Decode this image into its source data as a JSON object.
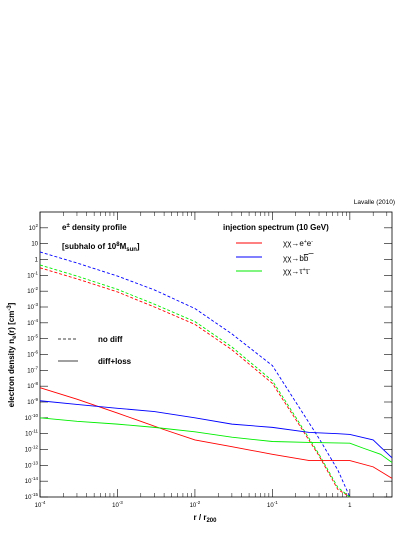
{
  "chart_data": {
    "type": "line",
    "credit": "Lavalle (2010)",
    "xlabel": "r / r",
    "xlabel_sub": "200",
    "ylabel_main": "electron density n",
    "ylabel_tail": "(r)  [cm",
    "xscale": "log",
    "yscale": "log",
    "xlim": [
      0.0001,
      3.5
    ],
    "ylim": [
      1e-15,
      1000
    ],
    "grid": false,
    "x_ticks": [
      {
        "value": 0.0001,
        "label": "10",
        "exp": "-4"
      },
      {
        "value": 0.001,
        "label": "10",
        "exp": "-3"
      },
      {
        "value": 0.01,
        "label": "10",
        "exp": "-2"
      },
      {
        "value": 0.1,
        "label": "10",
        "exp": "-1"
      },
      {
        "value": 1,
        "label": "1",
        "exp": ""
      }
    ],
    "y_ticks": [
      {
        "value": 1e-15,
        "label": "10",
        "exp": "-15"
      },
      {
        "value": 1e-14,
        "label": "10",
        "exp": "-14"
      },
      {
        "value": 1e-13,
        "label": "10",
        "exp": "-13"
      },
      {
        "value": 1e-12,
        "label": "10",
        "exp": "-12"
      },
      {
        "value": 1e-11,
        "label": "10",
        "exp": "-11"
      },
      {
        "value": 1e-10,
        "label": "10",
        "exp": "-10"
      },
      {
        "value": 1e-09,
        "label": "10",
        "exp": "-9"
      },
      {
        "value": 1e-08,
        "label": "10",
        "exp": "-8"
      },
      {
        "value": 1e-07,
        "label": "10",
        "exp": "-7"
      },
      {
        "value": 1e-06,
        "label": "10",
        "exp": "-6"
      },
      {
        "value": 1e-05,
        "label": "10",
        "exp": "-5"
      },
      {
        "value": 0.0001,
        "label": "10",
        "exp": "-4"
      },
      {
        "value": 0.001,
        "label": "10",
        "exp": "-3"
      },
      {
        "value": 0.01,
        "label": "10",
        "exp": "-2"
      },
      {
        "value": 0.1,
        "label": "10",
        "exp": "-1"
      },
      {
        "value": 1,
        "label": "1",
        "exp": ""
      },
      {
        "value": 10,
        "label": "10",
        "exp": ""
      },
      {
        "value": 100,
        "label": "10",
        "exp": "2"
      }
    ],
    "annotations": {
      "title_line1": "e",
      "title_sup": "±",
      "title_rest": " density profile",
      "subhalo_pre": "[subhalo of 10",
      "subhalo_exp": "8",
      "subhalo_unit": "M",
      "subhalo_sub": "sun",
      "subhalo_post": "]",
      "injection": "injection spectrum (10 GeV)"
    },
    "legend_style": [
      {
        "label": "no diff",
        "dash": true
      },
      {
        "label": "diff+loss",
        "dash": false
      }
    ],
    "legend_channels": [
      {
        "label": "χχ→e",
        "sup": "+",
        "label2": "e",
        "sup2": "-",
        "color": "#ff0000"
      },
      {
        "label": "χχ→b",
        "sup": "",
        "label2": "b",
        "sup2": "",
        "overline_second": true,
        "color": "#0000ff"
      },
      {
        "label": "χχ→τ",
        "sup": "+",
        "label2": "τ",
        "sup2": "-",
        "color": "#00ee00"
      }
    ],
    "series": [
      {
        "channel": "bb",
        "style": "no diff",
        "color": "#0000ff",
        "dash": true,
        "x": [
          0.0001,
          0.0003,
          0.001,
          0.003,
          0.01,
          0.03,
          0.1,
          0.2,
          0.4,
          0.7,
          1.0
        ],
        "y": [
          3,
          0.6,
          0.09,
          0.012,
          0.0008,
          2e-05,
          2e-07,
          1e-09,
          5e-12,
          5e-14,
          8e-16
        ]
      },
      {
        "channel": "ee",
        "style": "no diff",
        "color": "#ff0000",
        "dash": true,
        "x": [
          0.0001,
          0.0003,
          0.001,
          0.003,
          0.01,
          0.03,
          0.1,
          0.2,
          0.4,
          0.7,
          1.0
        ],
        "y": [
          0.3,
          0.06,
          0.009,
          0.001,
          8e-05,
          2e-06,
          1.5e-08,
          8e-11,
          4e-13,
          3e-15,
          1e-16
        ]
      },
      {
        "channel": "tautau",
        "style": "no diff",
        "color": "#00ee00",
        "dash": true,
        "x": [
          0.0001,
          0.0003,
          0.001,
          0.003,
          0.01,
          0.03,
          0.1,
          0.2,
          0.4,
          0.7,
          1.0
        ],
        "y": [
          0.45,
          0.09,
          0.013,
          0.0015,
          0.00012,
          3e-06,
          2.2e-08,
          1.1e-10,
          5e-13,
          4e-15,
          1.2e-16
        ]
      },
      {
        "channel": "ee",
        "style": "diff+loss",
        "color": "#ff0000",
        "dash": false,
        "x": [
          0.0001,
          0.0003,
          0.001,
          0.002,
          0.004,
          0.01,
          0.03,
          0.1,
          0.3,
          1.0,
          2.0,
          3.5
        ],
        "y": [
          8e-09,
          1.5e-09,
          2e-10,
          6e-11,
          1.8e-11,
          4e-12,
          1.5e-12,
          5e-13,
          2e-13,
          2e-13,
          8e-14,
          1.5e-14
        ]
      },
      {
        "channel": "bb",
        "style": "diff+loss",
        "color": "#0000ff",
        "dash": false,
        "x": [
          0.0001,
          0.0003,
          0.001,
          0.003,
          0.01,
          0.03,
          0.1,
          0.3,
          0.7,
          1.0,
          2.0,
          3.5
        ],
        "y": [
          1.2e-09,
          7e-10,
          4e-10,
          2.5e-10,
          1e-10,
          4e-11,
          2.5e-11,
          1.2e-11,
          1e-11,
          9e-12,
          4e-12,
          3e-13
        ]
      },
      {
        "channel": "tautau",
        "style": "diff+loss",
        "color": "#00ee00",
        "dash": false,
        "x": [
          0.0001,
          0.0003,
          0.001,
          0.003,
          0.01,
          0.03,
          0.1,
          0.3,
          1.0,
          1.5,
          2.5,
          3.5
        ],
        "y": [
          1e-10,
          6e-11,
          4e-11,
          2.5e-11,
          1.3e-11,
          6e-12,
          3.2e-12,
          2.8e-12,
          2.5e-12,
          1.2e-12,
          5e-13,
          1.5e-13
        ]
      }
    ]
  }
}
